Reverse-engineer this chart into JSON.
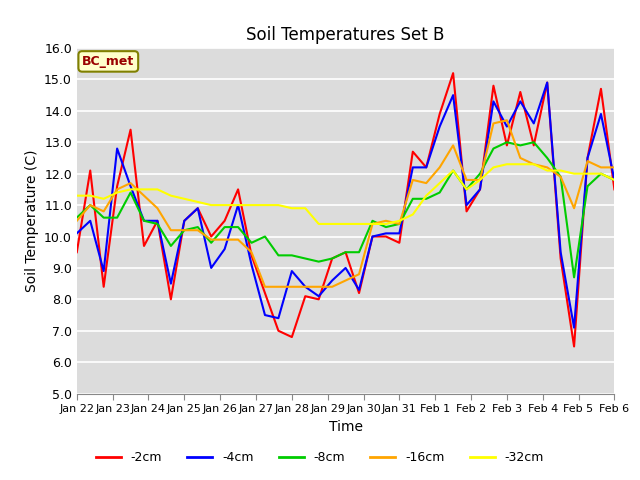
{
  "title": "Soil Temperatures Set B",
  "xlabel": "Time",
  "ylabel": "Soil Temperature (C)",
  "ylim": [
    5.0,
    16.0
  ],
  "yticks": [
    5.0,
    6.0,
    7.0,
    8.0,
    9.0,
    10.0,
    11.0,
    12.0,
    13.0,
    14.0,
    15.0,
    16.0
  ],
  "xtick_labels": [
    "Jan 22",
    "Jan 23",
    "Jan 24",
    "Jan 25",
    "Jan 26",
    "Jan 27",
    "Jan 28",
    "Jan 29",
    "Jan 30",
    "Jan 31",
    "Feb 1",
    "Feb 2",
    "Feb 3",
    "Feb 4",
    "Feb 5",
    "Feb 6"
  ],
  "bg_color": "#dcdcdc",
  "legend_label": "BC_met",
  "legend_box_bg": "#ffffcc",
  "legend_box_edge": "#808000",
  "series_order": [
    "-2cm",
    "-4cm",
    "-8cm",
    "-16cm",
    "-32cm"
  ],
  "series": {
    "-2cm": {
      "color": "#ff0000",
      "values": [
        9.5,
        12.1,
        8.4,
        11.6,
        13.4,
        9.7,
        10.5,
        8.0,
        10.5,
        10.9,
        10.0,
        10.5,
        11.5,
        9.4,
        8.2,
        7.0,
        6.8,
        8.1,
        8.0,
        9.3,
        9.5,
        8.2,
        10.0,
        10.0,
        9.8,
        12.7,
        12.2,
        13.9,
        15.2,
        10.8,
        11.5,
        14.8,
        12.9,
        14.6,
        12.9,
        14.9,
        9.3,
        6.5,
        12.5,
        14.7,
        11.5
      ]
    },
    "-4cm": {
      "color": "#0000ff",
      "values": [
        10.1,
        10.5,
        8.9,
        12.8,
        11.6,
        10.5,
        10.5,
        8.5,
        10.5,
        10.9,
        9.0,
        9.6,
        11.0,
        9.1,
        7.5,
        7.4,
        8.9,
        8.4,
        8.1,
        8.6,
        9.0,
        8.3,
        10.0,
        10.1,
        10.1,
        12.2,
        12.2,
        13.5,
        14.5,
        11.0,
        11.5,
        14.3,
        13.5,
        14.3,
        13.6,
        14.9,
        9.5,
        7.1,
        12.5,
        13.9,
        11.8
      ]
    },
    "-8cm": {
      "color": "#00cc00",
      "values": [
        10.6,
        11.0,
        10.6,
        10.6,
        11.4,
        10.5,
        10.4,
        9.7,
        10.2,
        10.3,
        9.8,
        10.3,
        10.3,
        9.8,
        10.0,
        9.4,
        9.4,
        9.3,
        9.2,
        9.3,
        9.5,
        9.5,
        10.5,
        10.3,
        10.4,
        11.2,
        11.2,
        11.4,
        12.1,
        11.5,
        12.0,
        12.8,
        13.0,
        12.9,
        13.0,
        12.5,
        11.9,
        8.7,
        11.6,
        12.0,
        11.8
      ]
    },
    "-16cm": {
      "color": "#ffa500",
      "values": [
        10.5,
        11.0,
        10.8,
        11.5,
        11.7,
        11.3,
        10.9,
        10.2,
        10.2,
        10.2,
        9.9,
        9.9,
        9.9,
        9.5,
        8.4,
        8.4,
        8.4,
        8.4,
        8.4,
        8.4,
        8.6,
        8.8,
        10.4,
        10.5,
        10.4,
        11.8,
        11.7,
        12.2,
        12.9,
        11.8,
        11.8,
        13.6,
        13.7,
        12.5,
        12.3,
        12.2,
        11.9,
        10.9,
        12.4,
        12.2,
        12.2
      ]
    },
    "-32cm": {
      "color": "#ffff00",
      "values": [
        11.3,
        11.3,
        11.2,
        11.4,
        11.5,
        11.5,
        11.5,
        11.3,
        11.2,
        11.1,
        11.0,
        11.0,
        11.0,
        11.0,
        11.0,
        11.0,
        10.9,
        10.9,
        10.4,
        10.4,
        10.4,
        10.4,
        10.4,
        10.4,
        10.5,
        10.7,
        11.3,
        11.7,
        12.1,
        11.5,
        11.8,
        12.2,
        12.3,
        12.3,
        12.3,
        12.1,
        12.1,
        12.0,
        12.0,
        12.0,
        11.8
      ]
    }
  }
}
